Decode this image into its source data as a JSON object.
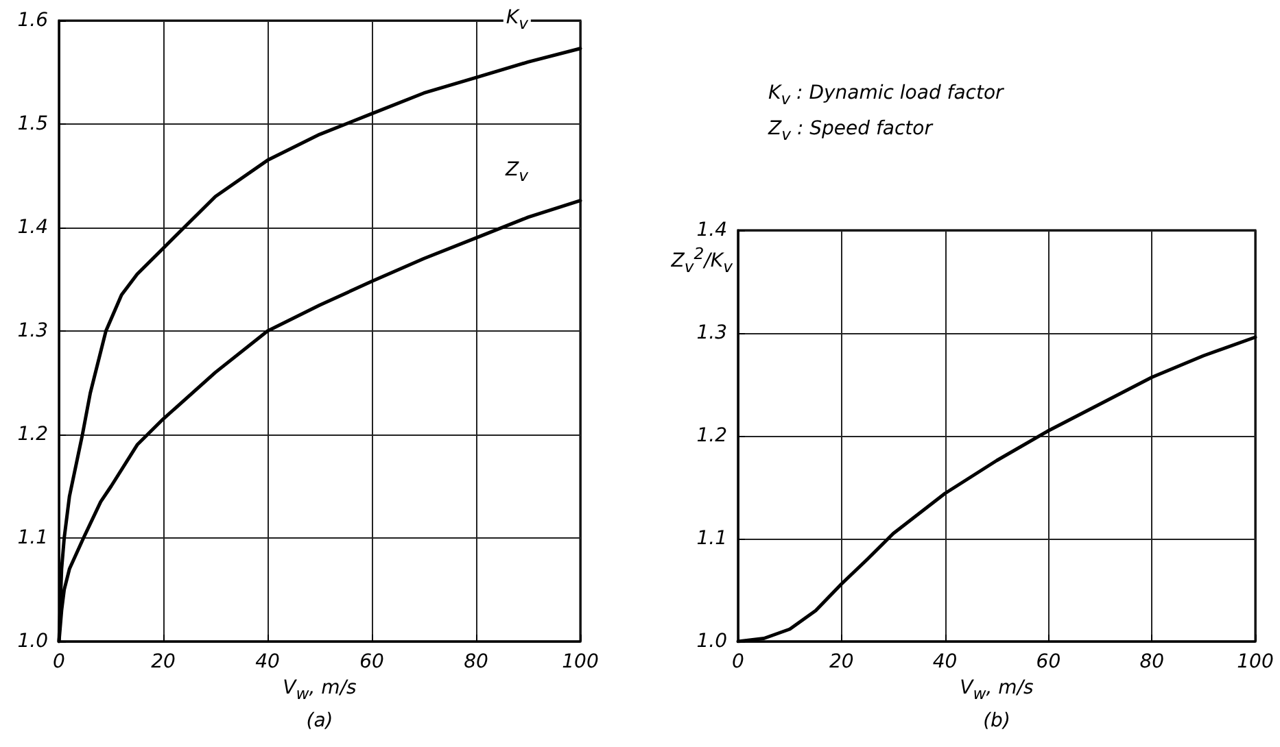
{
  "chart_data": [
    {
      "type": "line",
      "title": "(a)",
      "xlabel": "V$_{w}$, m/s",
      "xlim": [
        0,
        100
      ],
      "xticks": [
        0,
        20,
        40,
        60,
        80,
        100
      ],
      "ylim": [
        1.0,
        1.6
      ],
      "yticks": [
        {
          "value": 1.0,
          "label": "1.0"
        },
        1.1,
        1.2,
        1.3,
        1.4,
        1.5,
        1.6
      ],
      "grid": true,
      "legend": false,
      "marker": "none",
      "line_style": "solid",
      "series": [
        {
          "name": "K$_{v}$",
          "color": "#000000",
          "x": [
            0,
            0.5,
            1,
            2,
            4.5,
            6,
            9,
            12,
            15,
            20,
            30,
            40,
            50,
            60,
            70,
            80,
            90,
            100
          ],
          "values": [
            1.0,
            1.07,
            1.1,
            1.14,
            1.2,
            1.24,
            1.3,
            1.335,
            1.355,
            1.38,
            1.43,
            1.465,
            1.49,
            1.51,
            1.53,
            1.545,
            1.56,
            1.573
          ]
        },
        {
          "name": "Z$_{v}$",
          "color": "#000000",
          "x": [
            0,
            0.5,
            1,
            2,
            4.7,
            8,
            10,
            15,
            20,
            30,
            40,
            50,
            60,
            70,
            80,
            90,
            100
          ],
          "values": [
            1.0,
            1.03,
            1.05,
            1.07,
            1.1,
            1.135,
            1.15,
            1.19,
            1.215,
            1.26,
            1.3,
            1.325,
            1.348,
            1.37,
            1.39,
            1.41,
            1.426
          ]
        }
      ]
    },
    {
      "type": "line",
      "title": "(b)",
      "xlabel": "V$_{w}$, m/s",
      "ylabel": "Z$_{v}$$^{2}$/K$_{v}$",
      "annotations": [
        "K$_{v}$ : Dynamic load factor",
        "Z$_{v}$ : Speed factor"
      ],
      "xlim": [
        0,
        100
      ],
      "xticks": [
        0,
        20,
        40,
        60,
        80,
        100
      ],
      "ylim": [
        1.0,
        1.4
      ],
      "yticks": [
        {
          "value": 1.0,
          "label": "1.0"
        },
        1.1,
        1.2,
        1.3,
        1.4
      ],
      "grid": true,
      "legend": false,
      "marker": "none",
      "line_style": "solid",
      "series": [
        {
          "color": "#000000",
          "x": [
            0,
            5,
            10,
            15,
            20,
            25,
            30,
            40,
            50,
            60,
            70,
            80,
            90,
            100
          ],
          "values": [
            1.0,
            1.003,
            1.012,
            1.03,
            1.056,
            1.08,
            1.105,
            1.144,
            1.176,
            1.205,
            1.231,
            1.257,
            1.278,
            1.296
          ]
        }
      ]
    }
  ]
}
